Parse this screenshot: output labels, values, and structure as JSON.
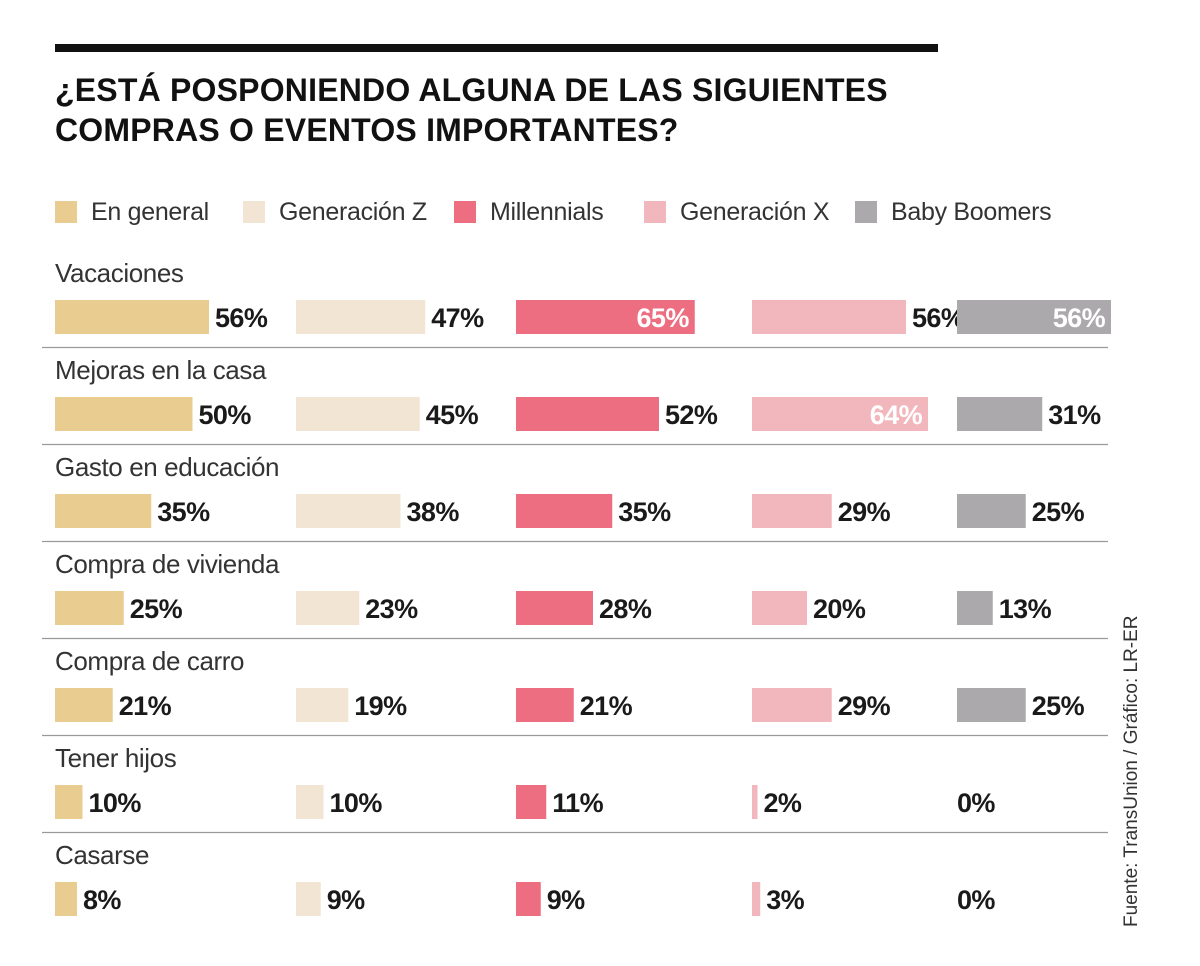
{
  "chart_data": {
    "type": "bar",
    "title_lines": [
      "¿ESTÁ POSPONIENDO ALGUNA DE LAS SIGUIENTES",
      "COMPRAS O EVENTOS IMPORTANTES?"
    ],
    "unit": "%",
    "xlim": [
      0,
      100
    ],
    "categories": [
      "Vacaciones",
      "Mejoras en la casa",
      "Gasto en educación",
      "Compra de vivienda",
      "Compra de carro",
      "Tener hijos",
      "Casarse"
    ],
    "series": [
      {
        "name": "En general",
        "color": "#e8cc90",
        "values": [
          56,
          50,
          35,
          25,
          21,
          10,
          8
        ]
      },
      {
        "name": "Generación Z",
        "color": "#f3e5d4",
        "values": [
          47,
          45,
          38,
          23,
          19,
          10,
          9
        ]
      },
      {
        "name": "Millennials",
        "color": "#ec6e80",
        "values": [
          65,
          52,
          35,
          28,
          21,
          11,
          9
        ]
      },
      {
        "name": "Generación X",
        "color": "#f2b7bd",
        "values": [
          56,
          64,
          29,
          20,
          29,
          2,
          3
        ]
      },
      {
        "name": "Baby Boomers",
        "color": "#aba9ab",
        "values": [
          56,
          31,
          25,
          13,
          25,
          0,
          0
        ]
      }
    ],
    "labels_inside": [
      [
        false,
        false,
        true,
        false,
        true
      ],
      [
        false,
        false,
        false,
        true,
        false
      ],
      [
        false,
        false,
        false,
        false,
        false
      ],
      [
        false,
        false,
        false,
        false,
        false
      ],
      [
        false,
        false,
        false,
        false,
        false
      ],
      [
        false,
        false,
        false,
        false,
        false
      ],
      [
        false,
        false,
        false,
        false,
        false
      ]
    ],
    "source": "Fuente: TransUnion / Gráfico: LR-ER"
  }
}
